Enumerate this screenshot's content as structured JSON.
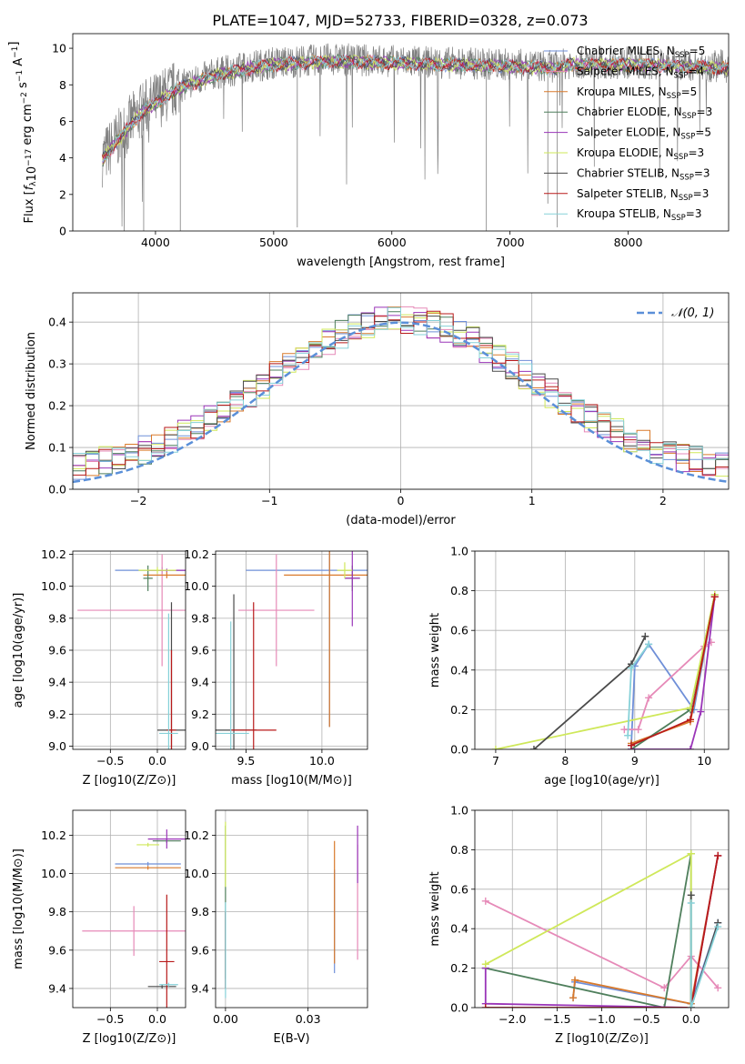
{
  "figure_title": "PLATE=1047, MJD=52733, FIBERID=0328, z=0.073",
  "palette": {
    "Chabrier MILES": "#6f8fd8",
    "Salpeter MILES": "#e68ab8",
    "Kroupa MILES": "#d97a2b",
    "Chabrier ELODIE": "#4f7f5c",
    "Salpeter ELODIE": "#9a35b8",
    "Kroupa ELODIE": "#cfe85a",
    "Chabrier STELIB": "#4a4a4a",
    "Salpeter STELIB": "#b81a1a",
    "Kroupa STELIB": "#86d1d8",
    "data_spectrum": "#808080",
    "normal_curve": "#5a8fd8"
  },
  "legend_labels": [
    {
      "model": "Chabrier MILES",
      "prefix": "Chabrier MILES, N",
      "n": "5"
    },
    {
      "model": "Salpeter MILES",
      "prefix": "Salpeter MILES, N",
      "n": "4"
    },
    {
      "model": "Kroupa MILES",
      "prefix": "Kroupa MILES, N",
      "n": "5"
    },
    {
      "model": "Chabrier ELODIE",
      "prefix": "Chabrier ELODIE, N",
      "n": "3"
    },
    {
      "model": "Salpeter ELODIE",
      "prefix": "Salpeter ELODIE, N",
      "n": "5"
    },
    {
      "model": "Kroupa ELODIE",
      "prefix": "Kroupa ELODIE, N",
      "n": "3"
    },
    {
      "model": "Chabrier STELIB",
      "prefix": "Chabrier STELIB, N",
      "n": "3"
    },
    {
      "model": "Salpeter STELIB",
      "prefix": "Salpeter STELIB, N",
      "n": "3"
    },
    {
      "model": "Kroupa STELIB",
      "prefix": "Kroupa STELIB, N",
      "n": "3"
    }
  ],
  "chart_data": [
    {
      "id": "spectrum",
      "type": "line",
      "xlabel": "wavelength [Angstrom, rest frame]",
      "ylabel": "Flux [f_λ 10^-17 erg cm^-2 s^-1 A^-1]",
      "xlim": [
        3300,
        8850
      ],
      "ylim": [
        0,
        10.8
      ],
      "xticks": [
        4000,
        5000,
        6000,
        7000,
        8000
      ],
      "yticks": [
        0,
        2,
        4,
        6,
        8,
        10
      ],
      "grid": false,
      "legend_position": "right",
      "model_trend": {
        "x": [
          3550,
          3650,
          3800,
          3900,
          4000,
          4200,
          4500,
          4800,
          5000,
          5500,
          6000,
          6500,
          7000,
          7400,
          7500,
          8000,
          8500,
          8850
        ],
        "y": [
          4.0,
          4.8,
          6.0,
          6.7,
          7.1,
          7.9,
          8.6,
          9.0,
          9.2,
          9.4,
          9.3,
          9.2,
          9.1,
          9.0,
          9.2,
          9.2,
          9.1,
          9.0
        ]
      },
      "data_noise_amplitude": 0.9
    },
    {
      "id": "residuals",
      "type": "histogram",
      "xlabel": "(data-model)/error",
      "ylabel": "Normed distribution",
      "xlim": [
        -2.5,
        2.5
      ],
      "ylim": [
        0,
        0.47
      ],
      "xticks": [
        -2,
        -1,
        0,
        1,
        2
      ],
      "yticks": [
        0.0,
        0.1,
        0.2,
        0.3,
        0.4
      ],
      "grid": true,
      "legend": "𝒩(0, 1)",
      "legend_position": "top-right",
      "bin_width": 0.1,
      "normal": {
        "mean": 0,
        "sigma": 1
      }
    },
    {
      "id": "age-vs-Z",
      "type": "errorbar",
      "xlabel": "Z [log10(Z/Z⊙)]",
      "ylabel": "age [log10(age/yr)]",
      "xlim": [
        -0.9,
        0.3
      ],
      "ylim": [
        8.98,
        10.22
      ],
      "xticks": [
        -0.5,
        0.0
      ],
      "yticks": [
        9.0,
        9.2,
        9.4,
        9.6,
        9.8,
        10.0,
        10.2
      ],
      "points": [
        {
          "model": "Chabrier MILES",
          "x": 0.05,
          "xerr": 0.5,
          "y": 10.1,
          "yerr": 0.02
        },
        {
          "model": "Salpeter MILES",
          "x": 0.05,
          "xerr": 0.9,
          "y": 9.85,
          "yerr": 0.35
        },
        {
          "model": "Kroupa MILES",
          "x": 0.1,
          "xerr": 0.25,
          "y": 10.07,
          "yerr": 0.02
        },
        {
          "model": "Chabrier ELODIE",
          "x": -0.1,
          "xerr": 0.05,
          "y": 10.05,
          "yerr": 0.08
        },
        {
          "model": "Salpeter ELODIE",
          "x": 0.1,
          "xerr": 0.2,
          "y": 10.1,
          "yerr": 0.01
        },
        {
          "model": "Kroupa ELODIE",
          "x": 0.0,
          "xerr": 0.2,
          "y": 10.1,
          "yerr": 0.02
        },
        {
          "model": "Chabrier STELIB",
          "x": 0.15,
          "xerr": 0.15,
          "y": 9.1,
          "yerr": 0.8
        },
        {
          "model": "Salpeter STELIB",
          "x": 0.15,
          "xerr": 0.05,
          "y": 9.1,
          "yerr": 0.5
        },
        {
          "model": "Kroupa STELIB",
          "x": 0.12,
          "xerr": 0.1,
          "y": 9.08,
          "yerr": 0.75
        }
      ]
    },
    {
      "id": "age-vs-mass",
      "type": "errorbar",
      "xlabel": "mass [log10(M/M⊙)]",
      "ylabel": "",
      "xlim": [
        9.3,
        10.3
      ],
      "ylim": [
        8.98,
        10.22
      ],
      "xticks": [
        9.5,
        10.0
      ],
      "yticks": [
        9.0,
        9.2,
        9.4,
        9.6,
        9.8,
        10.0,
        10.2
      ],
      "points": [
        {
          "model": "Chabrier MILES",
          "x": 10.05,
          "xerr": 0.55,
          "y": 10.1,
          "yerr": 0.98
        },
        {
          "model": "Salpeter MILES",
          "x": 9.7,
          "xerr": 0.25,
          "y": 9.85,
          "yerr": 0.35
        },
        {
          "model": "Kroupa MILES",
          "x": 10.05,
          "xerr": 0.3,
          "y": 10.07,
          "yerr": 0.95
        },
        {
          "model": "Chabrier ELODIE",
          "x": 10.2,
          "xerr": 0.05,
          "y": 10.05,
          "yerr": 0.08
        },
        {
          "model": "Salpeter ELODIE",
          "x": 10.2,
          "xerr": 0.05,
          "y": 10.05,
          "yerr": 0.3
        },
        {
          "model": "Kroupa ELODIE",
          "x": 10.15,
          "xerr": 0.05,
          "y": 10.1,
          "yerr": 0.05
        },
        {
          "model": "Chabrier STELIB",
          "x": 9.42,
          "xerr": 0.15,
          "y": 9.1,
          "yerr": 0.85
        },
        {
          "model": "Salpeter STELIB",
          "x": 9.55,
          "xerr": 0.15,
          "y": 9.1,
          "yerr": 0.8
        },
        {
          "model": "Kroupa STELIB",
          "x": 9.4,
          "xerr": 0.12,
          "y": 9.08,
          "yerr": 0.7
        }
      ]
    },
    {
      "id": "massweight-vs-age",
      "type": "line",
      "xlabel": "age [log10(age/yr)]",
      "ylabel": "mass weight",
      "xlim": [
        6.7,
        10.35
      ],
      "ylim": [
        0,
        1
      ],
      "xticks": [
        7,
        8,
        9,
        10
      ],
      "yticks": [
        0.0,
        0.2,
        0.4,
        0.6,
        0.8,
        1.0
      ],
      "grid": true,
      "series": [
        {
          "model": "Chabrier MILES",
          "x": [
            8.95,
            9.0,
            9.2,
            9.85,
            10.15
          ],
          "y": [
            0.02,
            0.42,
            0.53,
            0.2,
            0.77
          ]
        },
        {
          "model": "Salpeter MILES",
          "x": [
            8.85,
            9.05,
            9.2,
            10.0,
            10.1
          ],
          "y": [
            0.1,
            0.1,
            0.26,
            0.52,
            0.54
          ]
        },
        {
          "model": "Kroupa MILES",
          "x": [
            8.95,
            9.8,
            10.15
          ],
          "y": [
            0.03,
            0.14,
            0.77
          ]
        },
        {
          "model": "Chabrier ELODIE",
          "x": [
            8.95,
            9.8,
            10.15
          ],
          "y": [
            0.0,
            0.2,
            0.78
          ]
        },
        {
          "model": "Salpeter ELODIE",
          "x": [
            8.95,
            9.8,
            9.95,
            10.15
          ],
          "y": [
            0.0,
            0.0,
            0.19,
            0.77
          ]
        },
        {
          "model": "Kroupa ELODIE",
          "x": [
            7.0,
            9.8,
            10.15
          ],
          "y": [
            0.0,
            0.21,
            0.78
          ]
        },
        {
          "model": "Chabrier STELIB",
          "x": [
            7.55,
            8.95,
            9.15
          ],
          "y": [
            0.0,
            0.43,
            0.57
          ]
        },
        {
          "model": "Salpeter STELIB",
          "x": [
            8.95,
            9.8,
            10.15
          ],
          "y": [
            0.02,
            0.15,
            0.77
          ]
        },
        {
          "model": "Kroupa STELIB",
          "x": [
            8.9,
            8.95,
            9.2
          ],
          "y": [
            0.07,
            0.41,
            0.53
          ]
        }
      ]
    },
    {
      "id": "mass-vs-Z",
      "type": "errorbar",
      "xlabel": "Z [log10(Z/Z⊙)]",
      "ylabel": "mass [log10(M/M⊙)]",
      "xlim": [
        -0.9,
        0.3
      ],
      "ylim": [
        9.3,
        10.33
      ],
      "xticks": [
        -0.5,
        0.0
      ],
      "yticks": [
        9.4,
        9.6,
        9.8,
        10.0,
        10.2
      ],
      "points": [
        {
          "model": "Chabrier MILES",
          "x": -0.1,
          "xerr": 0.35,
          "y": 10.05,
          "yerr": 0.01
        },
        {
          "model": "Salpeter MILES",
          "x": -0.25,
          "xerr": 0.55,
          "y": 9.7,
          "yerr": 0.13
        },
        {
          "model": "Kroupa MILES",
          "x": -0.1,
          "xerr": 0.35,
          "y": 10.03,
          "yerr": 0.01
        },
        {
          "model": "Chabrier ELODIE",
          "x": 0.1,
          "xerr": 0.15,
          "y": 10.17,
          "yerr": 0.01
        },
        {
          "model": "Salpeter ELODIE",
          "x": 0.1,
          "xerr": 0.2,
          "y": 10.18,
          "yerr": 0.05
        },
        {
          "model": "Kroupa ELODIE",
          "x": -0.1,
          "xerr": 0.12,
          "y": 10.15,
          "yerr": 0.01
        },
        {
          "model": "Chabrier STELIB",
          "x": 0.05,
          "xerr": 0.15,
          "y": 9.41,
          "yerr": 0.01
        },
        {
          "model": "Salpeter STELIB",
          "x": 0.1,
          "xerr": 0.08,
          "y": 9.54,
          "yerr": 0.35
        },
        {
          "model": "Kroupa STELIB",
          "x": 0.12,
          "xerr": 0.1,
          "y": 9.42,
          "yerr": 0.01
        }
      ]
    },
    {
      "id": "mass-vs-EBV",
      "type": "errorbar",
      "xlabel": "E(B-V)",
      "ylabel": "",
      "xlim": [
        -0.003,
        0.043
      ],
      "ylim": [
        9.3,
        10.33
      ],
      "xticks": [
        0.0,
        0.025
      ],
      "yticks": [
        9.4,
        9.6,
        9.8,
        10.0,
        10.2
      ],
      "points": [
        {
          "model": "Chabrier MILES",
          "x": 0.033,
          "xerr": 0,
          "y": 9.75,
          "yerr": 0.27
        },
        {
          "model": "Salpeter MILES",
          "x": 0.04,
          "xerr": 0,
          "y": 9.85,
          "yerr": 0.3
        },
        {
          "model": "Kroupa MILES",
          "x": 0.033,
          "xerr": 0,
          "y": 9.85,
          "yerr": 0.32
        },
        {
          "model": "Chabrier ELODIE",
          "x": 0.0,
          "xerr": 0,
          "y": 9.85,
          "yerr": 0.4
        },
        {
          "model": "Salpeter ELODIE",
          "x": 0.04,
          "xerr": 0,
          "y": 10.1,
          "yerr": 0.15
        },
        {
          "model": "Kroupa ELODIE",
          "x": 0.0,
          "xerr": 0,
          "y": 10.1,
          "yerr": 0.17
        },
        {
          "model": "Chabrier STELIB",
          "x": 0.0,
          "xerr": 0,
          "y": 9.6,
          "yerr": 0.2
        },
        {
          "model": "Salpeter STELIB",
          "x": 0.0,
          "xerr": 0,
          "y": 9.6,
          "yerr": 0.2
        },
        {
          "model": "Kroupa STELIB",
          "x": 0.0,
          "xerr": 0,
          "y": 9.6,
          "yerr": 0.25
        }
      ]
    },
    {
      "id": "massweight-vs-Z",
      "type": "line",
      "xlabel": "Z [log10(Z/Z⊙)]",
      "ylabel": "mass weight",
      "xlim": [
        -2.42,
        0.42
      ],
      "ylim": [
        0,
        1
      ],
      "xticks": [
        -2.0,
        -1.5,
        -1.0,
        -0.5,
        0.0
      ],
      "yticks": [
        0.0,
        0.2,
        0.4,
        0.6,
        0.8,
        1.0
      ],
      "grid": true,
      "series": [
        {
          "model": "Chabrier MILES",
          "x": [
            -1.32,
            -1.3,
            0.0,
            0.3
          ],
          "y": [
            0.05,
            0.13,
            0.02,
            0.43
          ]
        },
        {
          "model": "Salpeter MILES",
          "x": [
            -2.3,
            -0.3,
            0.0,
            0.3
          ],
          "y": [
            0.54,
            0.1,
            0.26,
            0.1
          ]
        },
        {
          "model": "Kroupa MILES",
          "x": [
            -1.32,
            -1.3,
            0.0,
            0.3
          ],
          "y": [
            0.05,
            0.14,
            0.02,
            0.77
          ]
        },
        {
          "model": "Chabrier ELODIE",
          "x": [
            -2.3,
            -0.3,
            0.0,
            0.0
          ],
          "y": [
            0.2,
            0.0,
            0.78,
            0.0
          ]
        },
        {
          "model": "Salpeter ELODIE",
          "x": [
            -2.3,
            -2.3,
            0.0,
            0.3
          ],
          "y": [
            0.2,
            0.02,
            0.0,
            0.77
          ]
        },
        {
          "model": "Kroupa ELODIE",
          "x": [
            -2.3,
            0.0,
            0.0
          ],
          "y": [
            0.22,
            0.78,
            0.0
          ]
        },
        {
          "model": "Chabrier STELIB",
          "x": [
            0.0,
            0.0,
            0.3
          ],
          "y": [
            0.57,
            0.0,
            0.43
          ]
        },
        {
          "model": "Salpeter STELIB",
          "x": [
            -2.3,
            0.0,
            0.3
          ],
          "y": [
            0.0,
            0.0,
            0.77
          ]
        },
        {
          "model": "Kroupa STELIB",
          "x": [
            0.0,
            0.0,
            0.3
          ],
          "y": [
            0.53,
            0.0,
            0.41
          ]
        }
      ]
    }
  ]
}
